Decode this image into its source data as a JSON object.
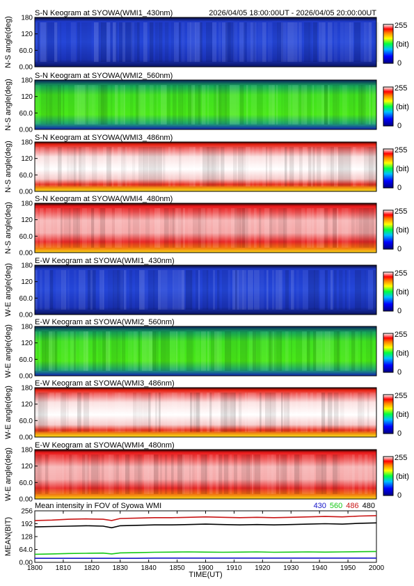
{
  "header": {
    "time_range": "2026/04/05 18:00:00UT - 2026/04/05 20:00:00UT"
  },
  "colorbar": {
    "max_label": "255",
    "unit_label": "(bit)",
    "min_label": "0"
  },
  "keograms": [
    {
      "title": "S-N Keogram at SYOWA(WMI1_430nm)",
      "ylabel": "N-S angle(deg)",
      "channel": "430",
      "yticks": [
        "0.00",
        "60.0",
        "120",
        "180"
      ]
    },
    {
      "title": "S-N Keogram at SYOWA(WMI2_560nm)",
      "ylabel": "N-S angle(deg)",
      "channel": "560",
      "yticks": [
        "0.00",
        "60.0",
        "120",
        "180"
      ]
    },
    {
      "title": "S-N Keogram at SYOWA(WMI3_486nm)",
      "ylabel": "N-S angle(deg)",
      "channel": "486",
      "yticks": [
        "0.00",
        "60.0",
        "120",
        "180"
      ]
    },
    {
      "title": "S-N Keogram at SYOWA(WMI4_480nm)",
      "ylabel": "N-S angle(deg)",
      "channel": "480",
      "yticks": [
        "0.00",
        "60.0",
        "120",
        "180"
      ]
    },
    {
      "title": "E-W Keogram at SYOWA(WMI1_430nm)",
      "ylabel": "W-E angle(deg)",
      "channel": "430",
      "yticks": [
        "0.00",
        "60.0",
        "120",
        "180"
      ]
    },
    {
      "title": "E-W Keogram at SYOWA(WMI2_560nm)",
      "ylabel": "W-E angle(deg)",
      "channel": "560",
      "yticks": [
        "0.00",
        "60.0",
        "120",
        "180"
      ]
    },
    {
      "title": "E-W Keogram at SYOWA(WMI3_486nm)",
      "ylabel": "W-E angle(deg)",
      "channel": "486",
      "yticks": [
        "0.00",
        "60.0",
        "120",
        "180"
      ]
    },
    {
      "title": "E-W Keogram at SYOWA(WMI4_480nm)",
      "ylabel": "W-E angle(deg)",
      "channel": "480",
      "yticks": [
        "0.00",
        "60.0",
        "120",
        "180"
      ]
    }
  ],
  "chart_data": {
    "type": "line",
    "title": "Mean intensity in FOV of Syowa WMI",
    "xlabel": "TIME(UT)",
    "ylabel": "MEAN(BIT)",
    "xlim": [
      1800,
      2000
    ],
    "ylim": [
      0,
      256
    ],
    "xticks": [
      "1800",
      "1810",
      "1820",
      "1830",
      "1840",
      "1850",
      "1900",
      "1910",
      "1920",
      "1930",
      "1940",
      "1950",
      "2000"
    ],
    "yticks": [
      "0.00",
      "64.0",
      "128",
      "192",
      "256"
    ],
    "x": [
      0,
      10,
      20,
      30,
      40,
      45,
      50,
      60,
      70,
      80,
      90,
      100,
      110,
      120,
      130,
      140,
      150,
      160,
      170,
      180,
      190,
      200
    ],
    "x_unit_note_hidden": "",
    "series": [
      {
        "name": "430",
        "color": "#1414c8",
        "values": [
          20,
          20,
          20,
          20,
          20,
          20,
          20,
          20,
          21,
          21,
          21,
          21,
          21,
          21,
          21,
          21,
          21,
          21,
          21,
          21,
          21,
          21
        ]
      },
      {
        "name": "560",
        "color": "#14c814",
        "values": [
          40,
          42,
          44,
          45,
          46,
          42,
          47,
          48,
          50,
          51,
          52,
          51,
          50,
          51,
          52,
          50,
          51,
          52,
          51,
          52,
          53,
          54
        ]
      },
      {
        "name": "486",
        "color": "#c81414",
        "values": [
          208,
          210,
          214,
          216,
          214,
          208,
          218,
          220,
          222,
          222,
          224,
          226,
          224,
          222,
          224,
          222,
          224,
          226,
          228,
          226,
          230,
          232
        ]
      },
      {
        "name": "480",
        "color": "#000000",
        "values": [
          176,
          178,
          180,
          182,
          180,
          172,
          182,
          184,
          186,
          186,
          188,
          190,
          188,
          186,
          188,
          186,
          188,
          190,
          192,
          190,
          194,
          196
        ]
      }
    ]
  }
}
